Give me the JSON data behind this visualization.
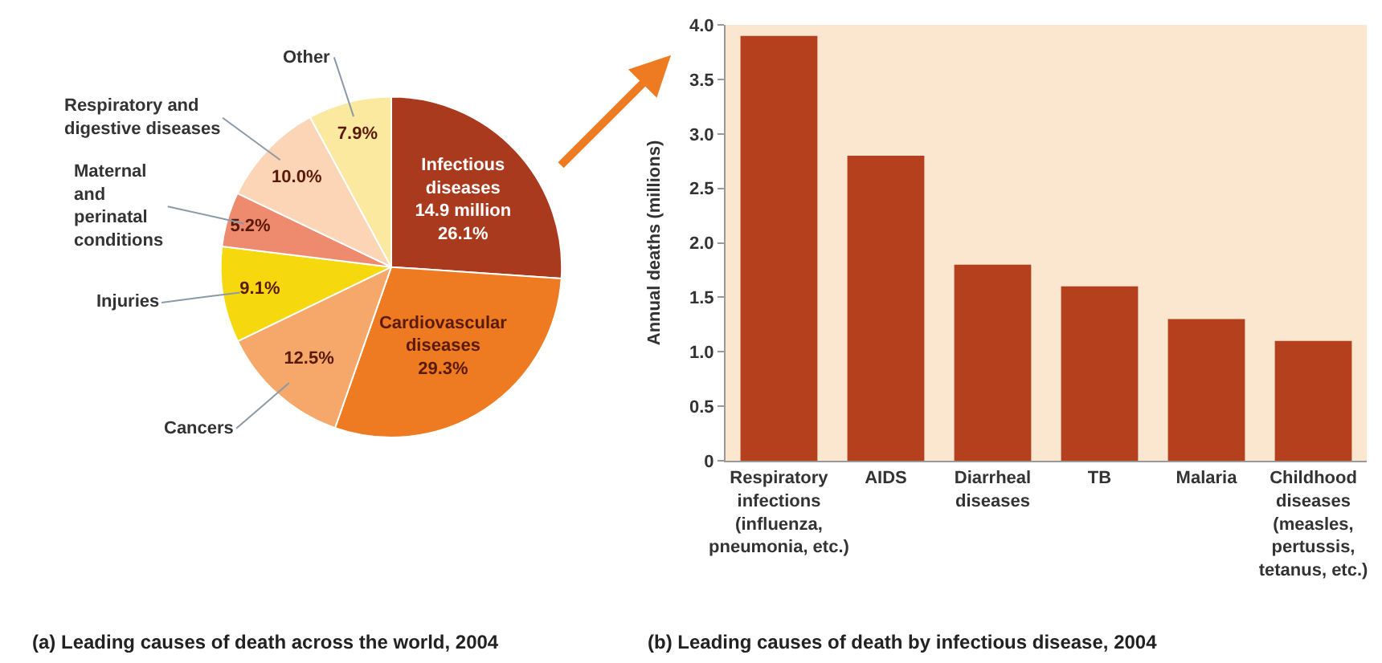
{
  "chart_data": [
    {
      "type": "pie",
      "title": "(a) Leading causes of death across the world, 2004",
      "categories": [
        "Infectious\ndiseases",
        "Cardiovascular\ndiseases",
        "Cancers",
        "Injuries",
        "Maternal\nand\nperinatal\nconditions",
        "Respiratory and\ndigestive diseases",
        "Other"
      ],
      "values": [
        26.1,
        29.3,
        12.5,
        9.1,
        5.2,
        10.0,
        7.9
      ],
      "value_labels": [
        "14.9 million\n26.1%",
        "29.3%",
        "12.5%",
        "9.1%",
        "5.2%",
        "10.0%",
        "7.9%"
      ],
      "colors": [
        "#a93a1e",
        "#ee7b22",
        "#f5a86a",
        "#f6d80e",
        "#ee8a6e",
        "#fbd5b5",
        "#fbe9a0"
      ]
    },
    {
      "type": "bar",
      "title": "(b) Leading causes of death by infectious disease, 2004",
      "ylabel": "Annual deaths (millions)",
      "categories": [
        "Respiratory\ninfections\n(influenza,\npneumonia, etc.)",
        "AIDS",
        "Diarrheal\ndiseases",
        "TB",
        "Malaria",
        "Childhood\ndiseases\n(measles,\npertussis,\ntetanus, etc.)"
      ],
      "values": [
        3.9,
        2.8,
        1.8,
        1.6,
        1.3,
        1.1
      ],
      "color": "#b5401e",
      "ylim": [
        0,
        4
      ],
      "yticks": [
        0,
        {
          "value": 0.5,
          "label": "0.5"
        },
        {
          "value": 1,
          "label": "1.0"
        },
        {
          "value": 1.5,
          "label": "1.5"
        },
        {
          "value": 2,
          "label": "2.0"
        },
        {
          "value": 2.5,
          "label": "2.5"
        },
        {
          "value": 3,
          "label": "3.0"
        },
        {
          "value": 3.5,
          "label": "3.5"
        },
        {
          "value": 4,
          "label": "4.0"
        }
      ],
      "grid": false
    }
  ]
}
